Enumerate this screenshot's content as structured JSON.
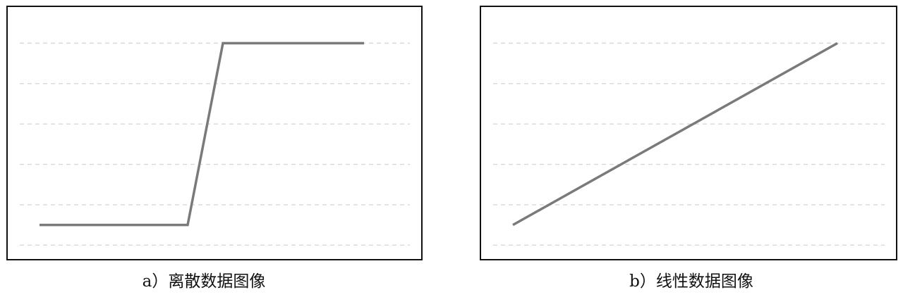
{
  "captions": {
    "a": "a）离散数据图像",
    "b": "b）线性数据图像"
  },
  "colors": {
    "line": "#7a7a7a",
    "grid": "#d8d8d8",
    "frame": "#111111"
  },
  "chart_data": [
    {
      "type": "line",
      "caption": "a）离散数据图像",
      "xlim": [
        0,
        10
      ],
      "ylim": [
        0,
        6.5
      ],
      "grid": true,
      "grid_lines": [
        0.5,
        1.5,
        2.5,
        3.5,
        4.5,
        5.5,
        6.5
      ],
      "series": [
        {
          "x": [
            0,
            4.2,
            5.2,
            9.2
          ],
          "y": [
            1,
            1,
            5.5,
            5.5
          ]
        }
      ]
    },
    {
      "type": "line",
      "caption": "b）线性数据图像",
      "xlim": [
        0,
        10
      ],
      "ylim": [
        0,
        6.5
      ],
      "grid": true,
      "grid_lines": [
        0.5,
        1.5,
        2.5,
        3.5,
        4.5,
        5.5,
        6.5
      ],
      "series": [
        {
          "x": [
            0,
            9.2
          ],
          "y": [
            1,
            5.5
          ]
        }
      ]
    }
  ]
}
